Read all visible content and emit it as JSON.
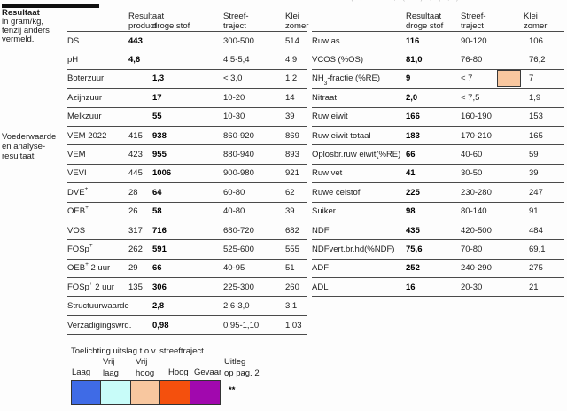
{
  "artifact_top": "( , . ' ' , ( . ) , ( , ) .",
  "sidebar": {
    "note_title": "Resultaat",
    "note_lines": [
      "in gram/kg,",
      "tenzij anders",
      "vermeld."
    ],
    "section_lines": [
      "Voederwaarde",
      "en analyse-",
      "resultaat"
    ]
  },
  "left_table": {
    "header": [
      {
        "l1": "",
        "l2": ""
      },
      {
        "l1": "Resultaat",
        "l2": "product"
      },
      {
        "l1": "",
        "l2": "droge stof"
      },
      {
        "l1": "Streef-",
        "l2": "traject"
      },
      {
        "l1": "Klei",
        "l2": "zomer"
      }
    ],
    "rows": [
      {
        "label": "DS",
        "product": "443",
        "pbold": true,
        "ds": "",
        "target": "300-500",
        "ref": "514"
      },
      {
        "label": "pH",
        "product": "4,6",
        "pbold": true,
        "ds": "",
        "target": "4,5-5,4",
        "ref": "4,9"
      },
      {
        "label": "Boterzuur",
        "product": "",
        "ds": "1,3",
        "target": "< 3,0",
        "ref": "1,2"
      },
      {
        "label": "Azijnzuur",
        "product": "",
        "ds": "17",
        "target": "10-20",
        "ref": "14"
      },
      {
        "label": "Melkzuur",
        "product": "",
        "ds": "55",
        "target": "10-30",
        "ref": "39"
      },
      {
        "label": "VEM 2022",
        "product": "415",
        "ds": "938",
        "target": "860-920",
        "ref": "869"
      },
      {
        "label": "VEM",
        "product": "423",
        "ds": "955",
        "target": "880-940",
        "ref": "893"
      },
      {
        "label": "VEVI",
        "product": "445",
        "ds": "1006",
        "target": "900-980",
        "ref": "921"
      },
      {
        "label": "DVE",
        "sup": "+",
        "product": "28",
        "ds": "64",
        "target": "60-80",
        "ref": "62"
      },
      {
        "label": "OEB",
        "sup": "+",
        "product": "26",
        "ds": "58",
        "target": "40-80",
        "ref": "39"
      },
      {
        "label": "VOS",
        "product": "317",
        "ds": "716",
        "target": "680-720",
        "ref": "682"
      },
      {
        "label": "FOSp",
        "sup": "+",
        "product": "262",
        "ds": "591",
        "target": "525-600",
        "ref": "555"
      },
      {
        "label": "OEB",
        "sup": "+",
        "post": " 2 uur",
        "product": "29",
        "ds": "66",
        "target": "40-95",
        "ref": "51"
      },
      {
        "label": "FOSp",
        "sup": "+",
        "post": " 2 uur",
        "product": "135",
        "ds": "306",
        "target": "225-300",
        "ref": "260"
      },
      {
        "label": "Structuurwaarde",
        "product": "",
        "ds": "2,8",
        "target": "2,6-3,0",
        "ref": "3,1"
      },
      {
        "label": "Verzadigingswrd.",
        "product": "",
        "ds": "0,98",
        "target": "0,95-1,10",
        "ref": "1,03"
      }
    ]
  },
  "right_table": {
    "header": [
      {
        "l1": "",
        "l2": ""
      },
      {
        "l1": "Resultaat",
        "l2": "droge stof"
      },
      {
        "l1": "Streef-",
        "l2": "traject"
      },
      {
        "l1": "",
        "l2": ""
      },
      {
        "l1": "Klei",
        "l2": "zomer"
      }
    ],
    "rows": [
      {
        "label": "Ruw as",
        "result": "116",
        "target": "90-120",
        "ref": "106"
      },
      {
        "label": "VCOS (%OS)",
        "result": "81,0",
        "target": "76-80",
        "ref": "76,2"
      },
      {
        "label": "NH",
        "sub": "3",
        "post": "-fractie (%RE)",
        "result": "9",
        "target": "< 7",
        "flag": true,
        "ref": "7"
      },
      {
        "label": "Nitraat",
        "result": "2,0",
        "target": "< 7,5",
        "ref": "1,9"
      },
      {
        "label": "Ruw eiwit",
        "result": "166",
        "target": "160-190",
        "ref": "153"
      },
      {
        "label": "Ruw eiwit totaal",
        "result": "183",
        "target": "170-210",
        "ref": "165"
      },
      {
        "label": "Oplosbr.ruw eiwit(%RE)",
        "result": "66",
        "target": "40-60",
        "ref": "59"
      },
      {
        "label": "Ruw vet",
        "result": "41",
        "target": "30-50",
        "ref": "39"
      },
      {
        "label": "Ruwe celstof",
        "result": "225",
        "target": "230-280",
        "ref": "247"
      },
      {
        "label": "Suiker",
        "result": "98",
        "target": "80-140",
        "ref": "91"
      },
      {
        "label": "NDF",
        "result": "435",
        "target": "420-500",
        "ref": "484"
      },
      {
        "label": "NDFvert.br.hd(%NDF)",
        "result": "75,6",
        "target": "70-80",
        "ref": "69,1"
      },
      {
        "label": "ADF",
        "result": "252",
        "target": "240-290",
        "ref": "275"
      },
      {
        "label": "ADL",
        "result": "16",
        "target": "20-30",
        "ref": "21"
      }
    ]
  },
  "legend": {
    "title": "Toelichting uitslag t.o.v. streeftraject",
    "items": [
      {
        "l1": "",
        "l2": "Laag",
        "color": "#3F6BE6"
      },
      {
        "l1": "Vrij",
        "l2": "laag",
        "color": "#C8FCF9"
      },
      {
        "l1": "Vrij",
        "l2": "hoog",
        "color": "#F8C79F"
      },
      {
        "l1": "",
        "l2": "Hoog",
        "color": "#F4500D"
      },
      {
        "l1": "",
        "l2": "Gevaar",
        "color": "#A108AE"
      }
    ],
    "note_line1": "Uitleg",
    "note_line2": "op pag. 2",
    "stars": "**"
  },
  "colors": {
    "flag_fill": "#F8C79F",
    "rule": "#4a4a4a",
    "heavy_rule": "#101010"
  }
}
